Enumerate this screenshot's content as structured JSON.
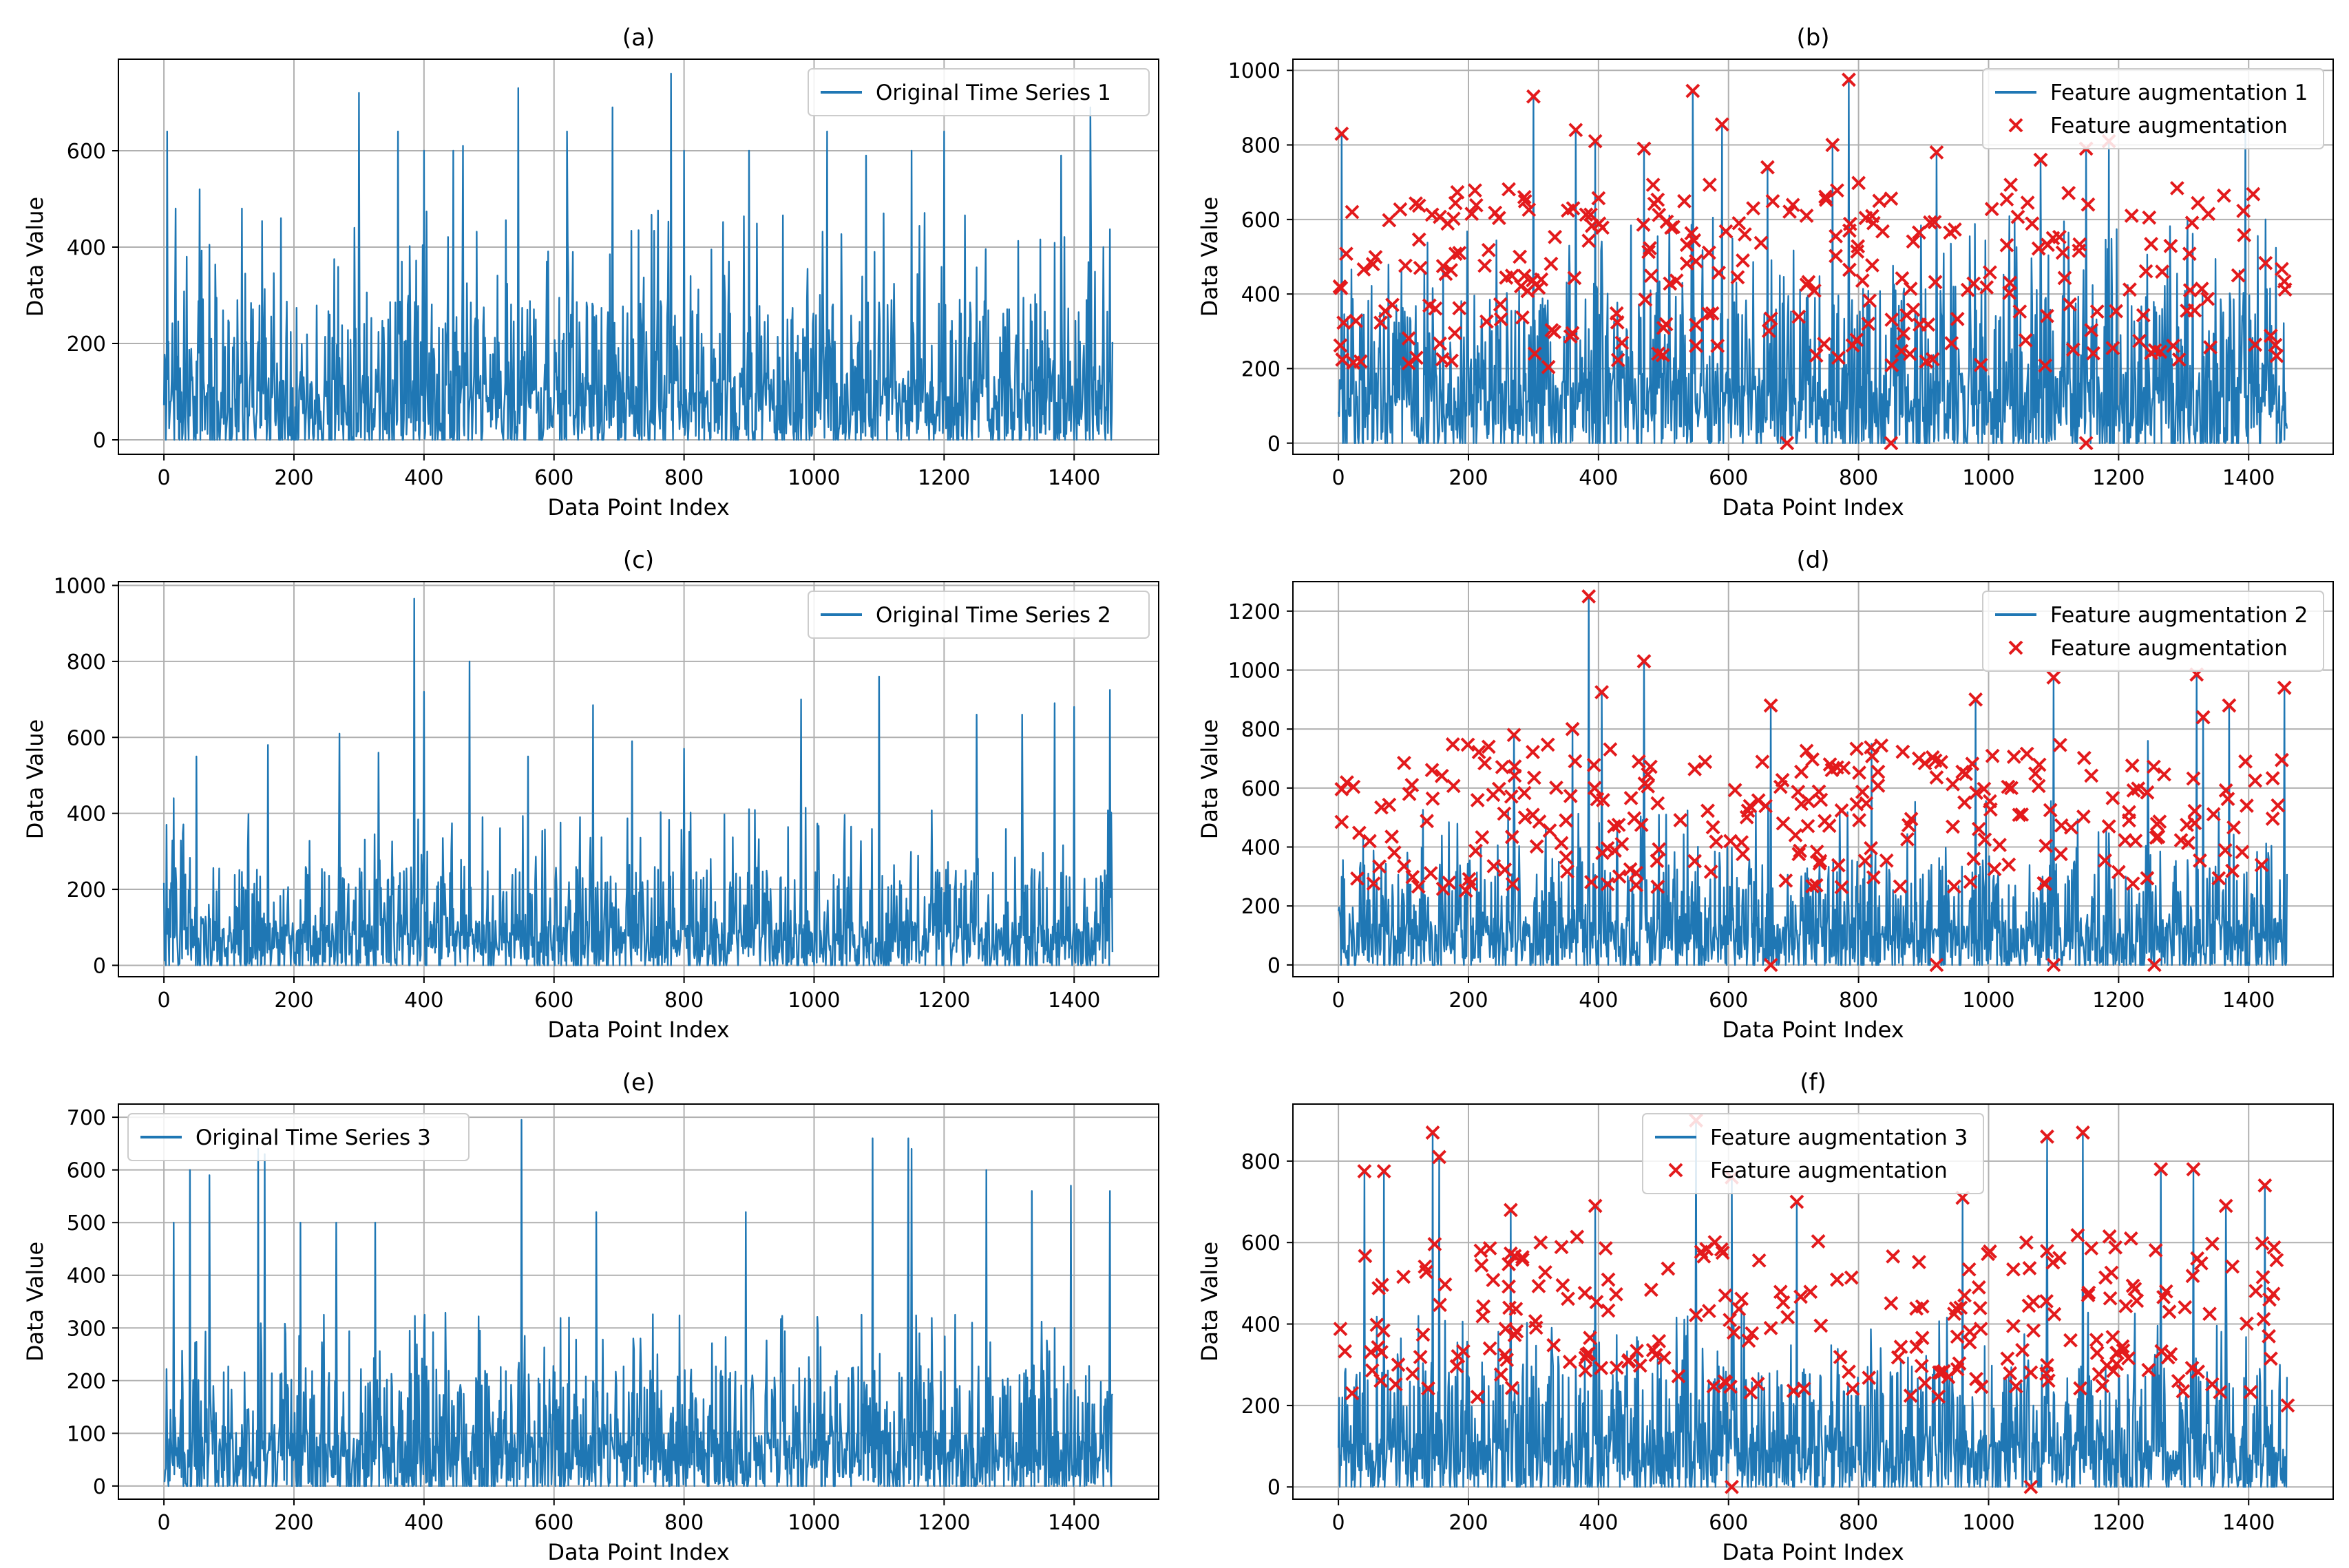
{
  "colors": {
    "line": "#1f77b4",
    "marker": "#e31a1c",
    "grid": "#b0b0b0",
    "spine": "#000000"
  },
  "chart_data": [
    {
      "id": "a",
      "type": "line",
      "title": "(a)",
      "xlabel": "Data Point Index",
      "ylabel": "Data Value",
      "xlim": [
        -70,
        1530
      ],
      "ylim": [
        -30,
        790
      ],
      "xticks": [
        0,
        200,
        400,
        600,
        800,
        1000,
        1200,
        1400
      ],
      "yticks": [
        0,
        200,
        400,
        600
      ],
      "legend_position": "top-right",
      "grid": true,
      "series": [
        {
          "name": "Original Time Series 1",
          "kind": "line",
          "color": "#1f77b4",
          "n": 1460,
          "seed": 11,
          "base_max": 480,
          "tail_max": 300,
          "zero_floor": 0,
          "peaks": [
            [
              5,
              640
            ],
            [
              18,
              480
            ],
            [
              35,
              380
            ],
            [
              55,
              520
            ],
            [
              120,
              480
            ],
            [
              180,
              460
            ],
            [
              300,
              720
            ],
            [
              360,
              640
            ],
            [
              400,
              600
            ],
            [
              445,
              600
            ],
            [
              460,
              610
            ],
            [
              545,
              730
            ],
            [
              620,
              640
            ],
            [
              690,
              690
            ],
            [
              780,
              760
            ],
            [
              800,
              600
            ],
            [
              900,
              600
            ],
            [
              1020,
              640
            ],
            [
              1080,
              590
            ],
            [
              1150,
              600
            ],
            [
              1200,
              640
            ],
            [
              1380,
              590
            ],
            [
              1425,
              690
            ],
            [
              1445,
              400
            ]
          ]
        }
      ]
    },
    {
      "id": "b",
      "type": "line",
      "title": "(b)",
      "xlabel": "Data Point Index",
      "ylabel": "Data Value",
      "xlim": [
        -70,
        1530
      ],
      "ylim": [
        -30,
        1030
      ],
      "xticks": [
        0,
        200,
        400,
        600,
        800,
        1000,
        1200,
        1400
      ],
      "yticks": [
        0,
        200,
        400,
        600,
        800,
        1000
      ],
      "legend_position": "top-right",
      "grid": true,
      "series": [
        {
          "name": "Feature augmentation 1",
          "kind": "line",
          "color": "#1f77b4",
          "n": 1460,
          "seed": 21,
          "base_max": 620,
          "tail_max": 420,
          "zero_floor": 0,
          "peaks": [
            [
              5,
              830
            ],
            [
              300,
              930
            ],
            [
              365,
              840
            ],
            [
              395,
              810
            ],
            [
              470,
              790
            ],
            [
              545,
              945
            ],
            [
              590,
              855
            ],
            [
              660,
              740
            ],
            [
              760,
              800
            ],
            [
              785,
              975
            ],
            [
              920,
              780
            ],
            [
              1080,
              760
            ],
            [
              1150,
              790
            ],
            [
              1185,
              810
            ],
            [
              1395,
              860
            ]
          ]
        },
        {
          "name": "Feature augmentation",
          "kind": "scatter",
          "color": "#e31a1c",
          "count": 260,
          "seed": 22,
          "min": 200,
          "max": 700,
          "fixed": [
            [
              5,
              830
            ],
            [
              300,
              930
            ],
            [
              365,
              840
            ],
            [
              395,
              810
            ],
            [
              470,
              790
            ],
            [
              545,
              945
            ],
            [
              590,
              855
            ],
            [
              660,
              740
            ],
            [
              760,
              800
            ],
            [
              785,
              975
            ],
            [
              920,
              780
            ],
            [
              1080,
              760
            ],
            [
              1150,
              790
            ],
            [
              1185,
              810
            ],
            [
              690,
              0
            ],
            [
              850,
              0
            ],
            [
              1150,
              0
            ]
          ]
        }
      ]
    },
    {
      "id": "c",
      "type": "line",
      "title": "(c)",
      "xlabel": "Data Point Index",
      "ylabel": "Data Value",
      "xlim": [
        -70,
        1530
      ],
      "ylim": [
        -30,
        1010
      ],
      "xticks": [
        0,
        200,
        400,
        600,
        800,
        1000,
        1200,
        1400
      ],
      "yticks": [
        0,
        200,
        400,
        600,
        800,
        1000
      ],
      "legend_position": "top-right",
      "grid": true,
      "series": [
        {
          "name": "Original Time Series 2",
          "kind": "line",
          "color": "#1f77b4",
          "n": 1460,
          "seed": 31,
          "base_max": 420,
          "tail_max": 260,
          "zero_floor": 0,
          "peaks": [
            [
              15,
              440
            ],
            [
              50,
              550
            ],
            [
              160,
              580
            ],
            [
              270,
              610
            ],
            [
              330,
              560
            ],
            [
              385,
              965
            ],
            [
              400,
              720
            ],
            [
              470,
              800
            ],
            [
              560,
              550
            ],
            [
              660,
              685
            ],
            [
              720,
              590
            ],
            [
              800,
              570
            ],
            [
              980,
              700
            ],
            [
              1100,
              760
            ],
            [
              1250,
              660
            ],
            [
              1320,
              660
            ],
            [
              1370,
              690
            ],
            [
              1400,
              680
            ],
            [
              1455,
              725
            ]
          ]
        }
      ]
    },
    {
      "id": "d",
      "type": "line",
      "title": "(d)",
      "xlabel": "Data Point Index",
      "ylabel": "Data Value",
      "xlim": [
        -70,
        1530
      ],
      "ylim": [
        -40,
        1300
      ],
      "xticks": [
        0,
        200,
        400,
        600,
        800,
        1000,
        1200,
        1400
      ],
      "yticks": [
        0,
        200,
        400,
        600,
        800,
        1000,
        1200
      ],
      "legend_position": "top-right",
      "grid": true,
      "series": [
        {
          "name": "Feature augmentation 2",
          "kind": "line",
          "color": "#1f77b4",
          "n": 1460,
          "seed": 41,
          "base_max": 560,
          "tail_max": 360,
          "zero_floor": 0,
          "peaks": [
            [
              385,
              1250
            ],
            [
              405,
              925
            ],
            [
              470,
              1030
            ],
            [
              270,
              780
            ],
            [
              360,
              800
            ],
            [
              665,
              880
            ],
            [
              980,
              900
            ],
            [
              1100,
              975
            ],
            [
              1320,
              985
            ],
            [
              1330,
              840
            ],
            [
              1370,
              880
            ],
            [
              1455,
              940
            ],
            [
              820,
              750
            ],
            [
              1245,
              760
            ]
          ]
        },
        {
          "name": "Feature augmentation",
          "kind": "scatter",
          "color": "#e31a1c",
          "count": 250,
          "seed": 42,
          "min": 250,
          "max": 750,
          "fixed": [
            [
              385,
              1250
            ],
            [
              405,
              925
            ],
            [
              470,
              1030
            ],
            [
              270,
              780
            ],
            [
              360,
              800
            ],
            [
              665,
              880
            ],
            [
              980,
              900
            ],
            [
              1100,
              975
            ],
            [
              1320,
              985
            ],
            [
              1330,
              840
            ],
            [
              1370,
              880
            ],
            [
              1455,
              940
            ],
            [
              665,
              0
            ],
            [
              920,
              0
            ],
            [
              1100,
              0
            ],
            [
              1255,
              0
            ]
          ]
        }
      ]
    },
    {
      "id": "e",
      "type": "line",
      "title": "(e)",
      "xlabel": "Data Point Index",
      "ylabel": "Data Value",
      "xlim": [
        -70,
        1530
      ],
      "ylim": [
        -25,
        725
      ],
      "xticks": [
        0,
        200,
        400,
        600,
        800,
        1000,
        1200,
        1400
      ],
      "yticks": [
        0,
        100,
        200,
        300,
        400,
        500,
        600,
        700
      ],
      "legend_position": "top-left",
      "grid": true,
      "series": [
        {
          "name": "Original Time Series 3",
          "kind": "line",
          "color": "#1f77b4",
          "n": 1460,
          "seed": 51,
          "base_max": 330,
          "tail_max": 230,
          "zero_floor": 0,
          "peaks": [
            [
              15,
              500
            ],
            [
              40,
              600
            ],
            [
              70,
              590
            ],
            [
              145,
              640
            ],
            [
              155,
              630
            ],
            [
              210,
              500
            ],
            [
              265,
              500
            ],
            [
              325,
              500
            ],
            [
              550,
              695
            ],
            [
              665,
              520
            ],
            [
              895,
              520
            ],
            [
              1090,
              660
            ],
            [
              1145,
              660
            ],
            [
              1150,
              640
            ],
            [
              1265,
              600
            ],
            [
              1335,
              560
            ],
            [
              1395,
              570
            ],
            [
              1455,
              560
            ]
          ]
        }
      ]
    },
    {
      "id": "f",
      "type": "line",
      "title": "(f)",
      "xlabel": "Data Point Index",
      "ylabel": "Data Value",
      "xlim": [
        -70,
        1530
      ],
      "ylim": [
        -30,
        940
      ],
      "xticks": [
        0,
        200,
        400,
        600,
        800,
        1000,
        1200,
        1400
      ],
      "yticks": [
        0,
        200,
        400,
        600,
        800
      ],
      "legend_position": "top-center",
      "grid": true,
      "series": [
        {
          "name": "Feature augmentation 3",
          "kind": "line",
          "color": "#1f77b4",
          "n": 1460,
          "seed": 61,
          "base_max": 440,
          "tail_max": 300,
          "zero_floor": 0,
          "peaks": [
            [
              145,
              870
            ],
            [
              155,
              810
            ],
            [
              40,
              775
            ],
            [
              70,
              775
            ],
            [
              265,
              680
            ],
            [
              395,
              690
            ],
            [
              550,
              900
            ],
            [
              605,
              760
            ],
            [
              960,
              710
            ],
            [
              1090,
              860
            ],
            [
              1145,
              870
            ],
            [
              1265,
              780
            ],
            [
              1315,
              780
            ],
            [
              1365,
              690
            ],
            [
              1425,
              740
            ],
            [
              705,
              700
            ]
          ]
        },
        {
          "name": "Feature augmentation",
          "kind": "scatter",
          "color": "#e31a1c",
          "count": 240,
          "seed": 62,
          "min": 220,
          "max": 620,
          "fixed": [
            [
              145,
              870
            ],
            [
              155,
              810
            ],
            [
              40,
              775
            ],
            [
              70,
              775
            ],
            [
              265,
              680
            ],
            [
              395,
              690
            ],
            [
              550,
              900
            ],
            [
              605,
              760
            ],
            [
              960,
              710
            ],
            [
              1090,
              860
            ],
            [
              1145,
              870
            ],
            [
              1265,
              780
            ],
            [
              1315,
              780
            ],
            [
              1365,
              690
            ],
            [
              1425,
              740
            ],
            [
              705,
              700
            ],
            [
              605,
              0
            ],
            [
              1065,
              0
            ],
            [
              1460,
              200
            ]
          ]
        }
      ]
    }
  ]
}
